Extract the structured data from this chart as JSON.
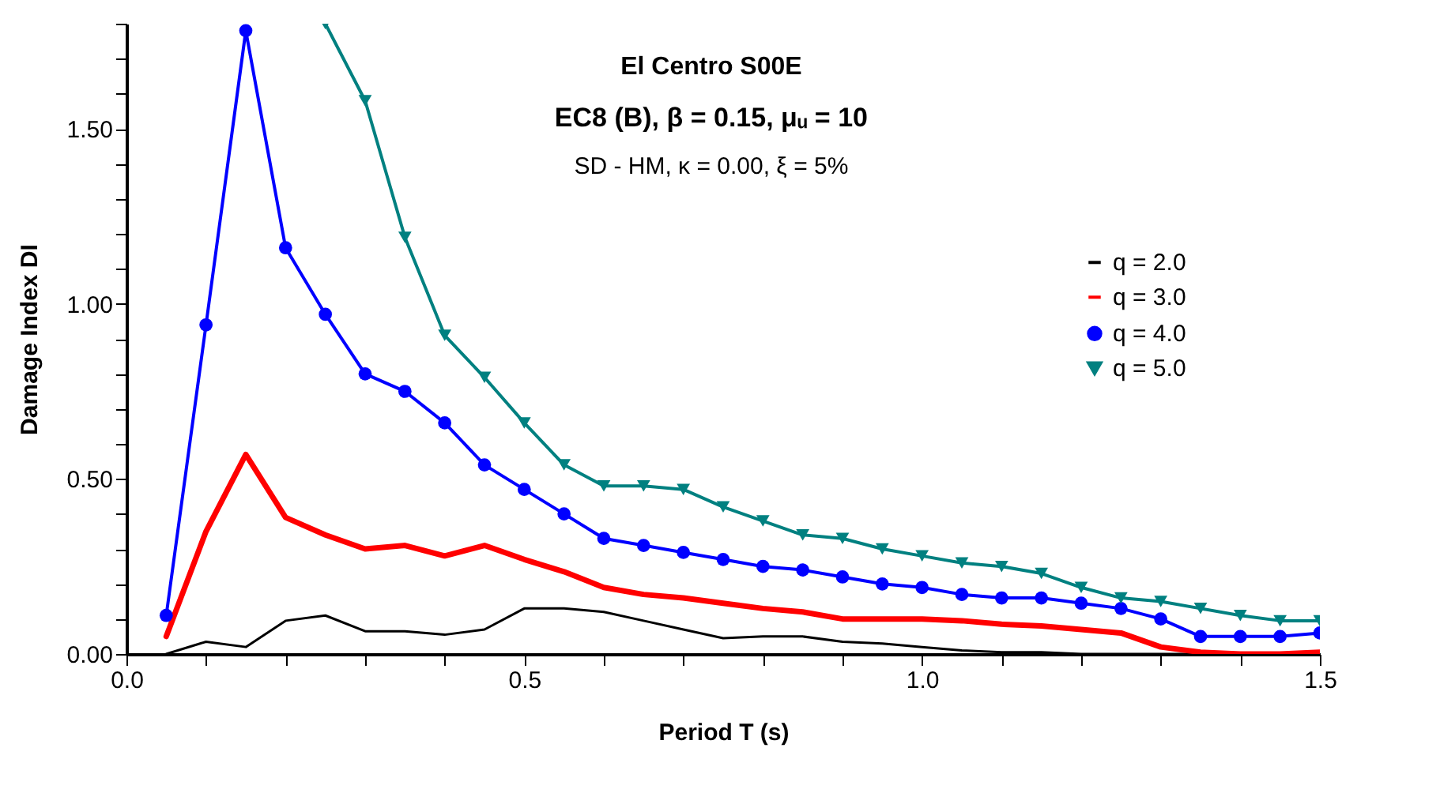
{
  "chart_data": {
    "type": "line",
    "title": "El Centro S00E",
    "subtitle": "EC8 (B), β = 0.15, μᵤ = 10",
    "annotations": [
      "SD - HM, κ = 0.00,  ξ = 5%"
    ],
    "xlabel": "Period  T  (s)",
    "ylabel": "Damage Index  DI",
    "x": [
      0.05,
      0.1,
      0.15,
      0.2,
      0.25,
      0.3,
      0.35,
      0.4,
      0.45,
      0.5,
      0.55,
      0.6,
      0.65,
      0.7,
      0.75,
      0.8,
      0.85,
      0.9,
      0.95,
      1.0,
      1.05,
      1.1,
      1.15,
      1.2,
      1.25,
      1.3,
      1.35,
      1.4,
      1.45,
      1.5
    ],
    "series": [
      {
        "name": "q = 2.0",
        "color": "#000000",
        "marker": "none",
        "values": [
          0,
          0.035,
          0.02,
          0.095,
          0.11,
          0.065,
          0.065,
          0.055,
          0.07,
          0.13,
          0.13,
          0.12,
          0.095,
          0.07,
          0.045,
          0.05,
          0.05,
          0.035,
          0.03,
          0.02,
          0.01,
          0.005,
          0.005,
          0,
          0,
          0,
          0,
          0,
          0,
          0
        ]
      },
      {
        "name": "q = 3.0",
        "color": "#ff0000",
        "marker": "none",
        "values": [
          0.05,
          0.35,
          0.57,
          0.39,
          0.34,
          0.3,
          0.31,
          0.28,
          0.31,
          0.27,
          0.235,
          0.19,
          0.17,
          0.16,
          0.145,
          0.13,
          0.12,
          0.1,
          0.1,
          0.1,
          0.095,
          0.085,
          0.08,
          0.07,
          0.06,
          0.02,
          0.005,
          0,
          0,
          0.005
        ]
      },
      {
        "name": "q = 4.0",
        "color": "#0000ff",
        "marker": "circle",
        "values": [
          0.11,
          0.94,
          1.78,
          1.16,
          0.97,
          0.8,
          0.75,
          0.66,
          0.54,
          0.47,
          0.4,
          0.33,
          0.31,
          0.29,
          0.27,
          0.25,
          0.24,
          0.22,
          0.2,
          0.19,
          0.17,
          0.16,
          0.16,
          0.145,
          0.13,
          0.1,
          0.05,
          0.05,
          0.05,
          0.06
        ]
      },
      {
        "name": "q = 5.0",
        "color": "#008080",
        "marker": "triangle",
        "x": [
          0.25,
          0.3,
          0.35,
          0.4,
          0.45,
          0.5,
          0.55,
          0.6,
          0.65,
          0.7,
          0.75,
          0.8,
          0.85,
          0.9,
          0.95,
          1.0,
          1.05,
          1.1,
          1.15,
          1.2,
          1.25,
          1.3,
          1.35,
          1.4,
          1.45,
          1.5
        ],
        "values": [
          1.8,
          1.58,
          1.19,
          0.91,
          0.79,
          0.66,
          0.54,
          0.48,
          0.48,
          0.47,
          0.42,
          0.38,
          0.34,
          0.33,
          0.3,
          0.28,
          0.26,
          0.25,
          0.23,
          0.19,
          0.16,
          0.15,
          0.13,
          0.11,
          0.095,
          0.095
        ]
      }
    ],
    "xlim": [
      0,
      1.5
    ],
    "ylim": [
      0,
      1.8
    ],
    "xticks": [
      {
        "value": 0,
        "label": "0.0"
      },
      {
        "value": 0.1,
        "label": null
      },
      {
        "value": 0.2,
        "label": null
      },
      {
        "value": 0.3,
        "label": null
      },
      {
        "value": 0.4,
        "label": null
      },
      {
        "value": 0.5,
        "label": "0.5"
      },
      {
        "value": 0.6,
        "label": null
      },
      {
        "value": 0.7,
        "label": null
      },
      {
        "value": 0.8,
        "label": null
      },
      {
        "value": 0.9,
        "label": null
      },
      {
        "value": 1,
        "label": "1.0"
      },
      {
        "value": 1.1,
        "label": null
      },
      {
        "value": 1.2,
        "label": null
      },
      {
        "value": 1.3,
        "label": null
      },
      {
        "value": 1.4,
        "label": null
      },
      {
        "value": 1.5,
        "label": "1.5"
      }
    ],
    "yticks": [
      {
        "value": 0,
        "label": "0.00"
      },
      {
        "value": 0.1,
        "label": null
      },
      {
        "value": 0.2,
        "label": null
      },
      {
        "value": 0.3,
        "label": null
      },
      {
        "value": 0.4,
        "label": null
      },
      {
        "value": 0.5,
        "label": "0.50"
      },
      {
        "value": 0.6,
        "label": null
      },
      {
        "value": 0.7,
        "label": null
      },
      {
        "value": 0.8,
        "label": null
      },
      {
        "value": 0.9,
        "label": null
      },
      {
        "value": 1,
        "label": "1.00"
      },
      {
        "value": 1.1,
        "label": null
      },
      {
        "value": 1.2,
        "label": null
      },
      {
        "value": 1.3,
        "label": null
      },
      {
        "value": 1.4,
        "label": null
      },
      {
        "value": 1.5,
        "label": "1.50"
      },
      {
        "value": 1.6,
        "label": null
      },
      {
        "value": 1.7,
        "label": null
      },
      {
        "value": 1.8,
        "label": null
      }
    ],
    "grid": false,
    "legend": "right",
    "line_style": "solid"
  }
}
